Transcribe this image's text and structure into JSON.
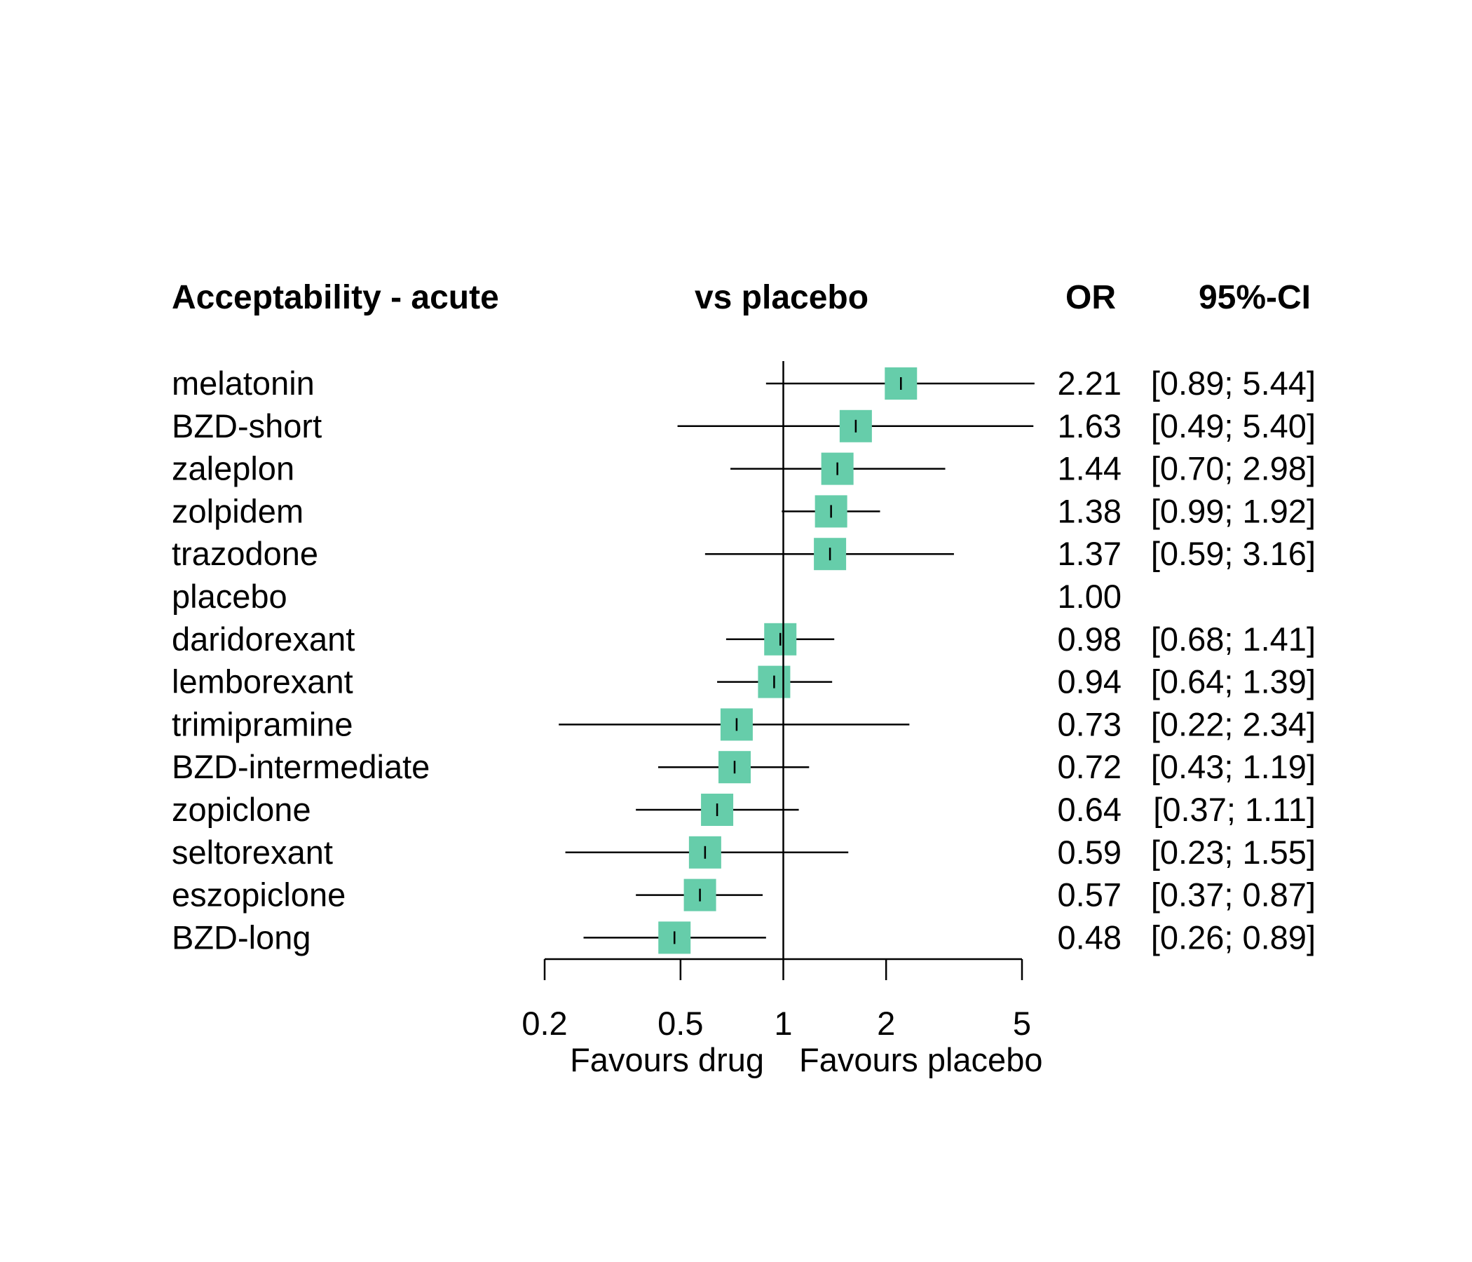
{
  "chart_data": {
    "type": "forest",
    "headers": {
      "label": "Acceptability - acute",
      "comparison": "vs placebo",
      "estimate": "OR",
      "ci": "95%-CI"
    },
    "x_scale": "log",
    "x_ticks": [
      "0.2",
      "0.5",
      "1",
      "2",
      "5"
    ],
    "x_tick_values": [
      0.2,
      0.5,
      1,
      2,
      5
    ],
    "x_range": [
      0.2,
      5
    ],
    "reference_value": 1,
    "direction_labels": {
      "left": "Favours drug",
      "right": "Favours placebo"
    },
    "marker_color": "#66cdaa",
    "rows": [
      {
        "treatment": "melatonin",
        "or": 2.21,
        "lower": 0.89,
        "upper": 5.44,
        "or_label": "2.21",
        "ci_label": "[0.89; 5.44]"
      },
      {
        "treatment": "BZD-short",
        "or": 1.63,
        "lower": 0.49,
        "upper": 5.4,
        "or_label": "1.63",
        "ci_label": "[0.49; 5.40]"
      },
      {
        "treatment": "zaleplon",
        "or": 1.44,
        "lower": 0.7,
        "upper": 2.98,
        "or_label": "1.44",
        "ci_label": "[0.70; 2.98]"
      },
      {
        "treatment": "zolpidem",
        "or": 1.38,
        "lower": 0.99,
        "upper": 1.92,
        "or_label": "1.38",
        "ci_label": "[0.99; 1.92]"
      },
      {
        "treatment": "trazodone",
        "or": 1.37,
        "lower": 0.59,
        "upper": 3.16,
        "or_label": "1.37",
        "ci_label": "[0.59; 3.16]"
      },
      {
        "treatment": "placebo",
        "or": 1.0,
        "lower": null,
        "upper": null,
        "or_label": "1.00",
        "ci_label": ""
      },
      {
        "treatment": "daridorexant",
        "or": 0.98,
        "lower": 0.68,
        "upper": 1.41,
        "or_label": "0.98",
        "ci_label": "[0.68; 1.41]"
      },
      {
        "treatment": "lemborexant",
        "or": 0.94,
        "lower": 0.64,
        "upper": 1.39,
        "or_label": "0.94",
        "ci_label": "[0.64; 1.39]"
      },
      {
        "treatment": "trimipramine",
        "or": 0.73,
        "lower": 0.22,
        "upper": 2.34,
        "or_label": "0.73",
        "ci_label": "[0.22; 2.34]"
      },
      {
        "treatment": "BZD-intermediate",
        "or": 0.72,
        "lower": 0.43,
        "upper": 1.19,
        "or_label": "0.72",
        "ci_label": "[0.43; 1.19]"
      },
      {
        "treatment": "zopiclone",
        "or": 0.64,
        "lower": 0.37,
        "upper": 1.11,
        "or_label": "0.64",
        "ci_label": "[0.37; 1.11]"
      },
      {
        "treatment": "seltorexant",
        "or": 0.59,
        "lower": 0.23,
        "upper": 1.55,
        "or_label": "0.59",
        "ci_label": "[0.23; 1.55]"
      },
      {
        "treatment": "eszopiclone",
        "or": 0.57,
        "lower": 0.37,
        "upper": 0.87,
        "or_label": "0.57",
        "ci_label": "[0.37; 0.87]"
      },
      {
        "treatment": "BZD-long",
        "or": 0.48,
        "lower": 0.26,
        "upper": 0.89,
        "or_label": "0.48",
        "ci_label": "[0.26; 0.89]"
      }
    ]
  }
}
